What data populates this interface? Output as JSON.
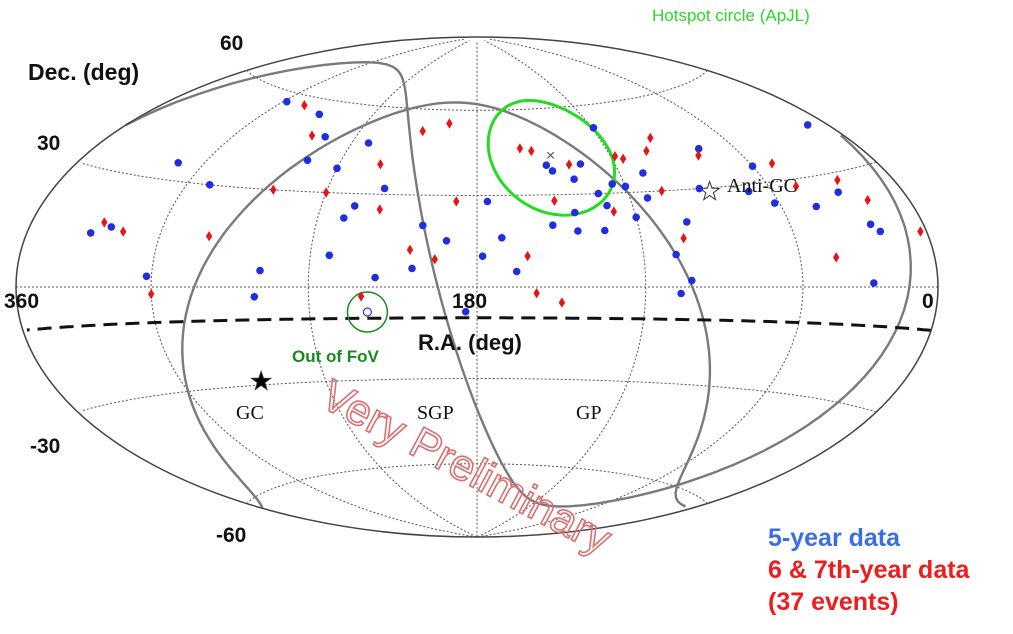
{
  "chart_data": {
    "type": "scatter",
    "projection": "hammer-aitoff",
    "xlabel": "R.A. (deg)",
    "ylabel": "Dec. (deg)",
    "ra_ticks": [
      "360",
      "180",
      "0"
    ],
    "dec_ticks": [
      "60",
      "30",
      "-30",
      "-60"
    ],
    "grid": true,
    "annotations": {
      "hotspot": "Hotspot circle (ApJL)",
      "out_of_fov": "Out of FoV",
      "anti_gc": "Anti-GC",
      "gc": "GC",
      "sgp": "SGP",
      "gp": "GP",
      "watermark": "Very Preliminary"
    },
    "series": [
      {
        "name": "5-year data",
        "color": "#1f2fe0",
        "marker": "circle",
        "points": [
          [
            298,
            57
          ],
          [
            270,
            55
          ],
          [
            255,
            48
          ],
          [
            232,
            47
          ],
          [
            312,
            35
          ],
          [
            255,
            40
          ],
          [
            240,
            38
          ],
          [
            290,
            30
          ],
          [
            217,
            32
          ],
          [
            176,
            28
          ],
          [
            227,
            26
          ],
          [
            200,
            20
          ],
          [
            191,
            15
          ],
          [
            178,
            10
          ],
          [
            166,
            5
          ],
          [
            171,
            16
          ],
          [
            203,
            6
          ],
          [
            216,
            3
          ],
          [
            260,
            -3
          ],
          [
            322,
            16
          ],
          [
            330,
            14
          ],
          [
            302,
            3
          ],
          [
            258,
            5
          ],
          [
            233,
            10
          ],
          [
            150,
            40
          ],
          [
            148,
            38
          ],
          [
            140,
            35
          ],
          [
            135,
            40
          ],
          [
            132,
            30
          ],
          [
            125,
            33
          ],
          [
            120,
            32
          ],
          [
            110,
            36
          ],
          [
            143,
            24
          ],
          [
            130,
            26
          ],
          [
            113,
            28
          ],
          [
            152,
            20
          ],
          [
            143,
            18
          ],
          [
            133,
            18
          ],
          [
            120,
            22
          ],
          [
            101,
            20
          ],
          [
            90,
            30
          ],
          [
            70,
            28
          ],
          [
            60,
            35
          ],
          [
            62,
            24
          ],
          [
            45,
            22
          ],
          [
            25,
            16
          ],
          [
            22,
            14
          ],
          [
            31,
            25
          ],
          [
            10,
            42
          ],
          [
            108,
            10
          ],
          [
            103,
            2
          ],
          [
            230,
            22
          ],
          [
            30,
            1
          ],
          [
            184,
            -8
          ],
          [
            119,
            52
          ],
          [
            77,
            42
          ],
          [
            107,
            -2
          ]
        ]
      },
      {
        "name": "6 & 7th-year data",
        "color": "#e61616",
        "marker": "diamond",
        "points": [
          [
            285,
            57
          ],
          [
            262,
            48
          ],
          [
            208,
            52
          ],
          [
            195,
            55
          ],
          [
            222,
            40
          ],
          [
            160,
            46
          ],
          [
            140,
            40
          ],
          [
            115,
            41
          ],
          [
            95,
            47
          ],
          [
            102,
            43
          ],
          [
            80,
            40
          ],
          [
            50,
            35
          ],
          [
            48,
            28
          ],
          [
            240,
            30
          ],
          [
            217,
            25
          ],
          [
            188,
            28
          ],
          [
            150,
            28
          ],
          [
            128,
            24
          ],
          [
            106,
            30
          ],
          [
            262,
            30
          ],
          [
            326,
            17
          ],
          [
            316,
            15
          ],
          [
            280,
            15
          ],
          [
            204,
            12
          ],
          [
            195,
            9
          ],
          [
            162,
            10
          ],
          [
            104,
            15
          ],
          [
            45,
            8
          ],
          [
            3,
            13
          ],
          [
            300,
            -2
          ],
          [
            159,
            -2
          ],
          [
            150,
            -5
          ],
          [
            221,
            -3
          ],
          [
            20,
            22
          ],
          [
            27,
            28
          ],
          [
            155,
            45
          ],
          [
            118,
            42
          ]
        ]
      }
    ],
    "hotspot_center": [
      146.7,
      43.2
    ],
    "hotspot_radius_deg": 20,
    "out_of_fov_center": [
      219,
      -8
    ],
    "anti_gc_position": [
      86.4,
      28.9
    ],
    "gc_position": [
      266.4,
      -28.9
    ],
    "legend": {
      "five_year": "5-year data",
      "six_seven_year": "6 & 7th-year data",
      "count": "(37 events)"
    }
  }
}
